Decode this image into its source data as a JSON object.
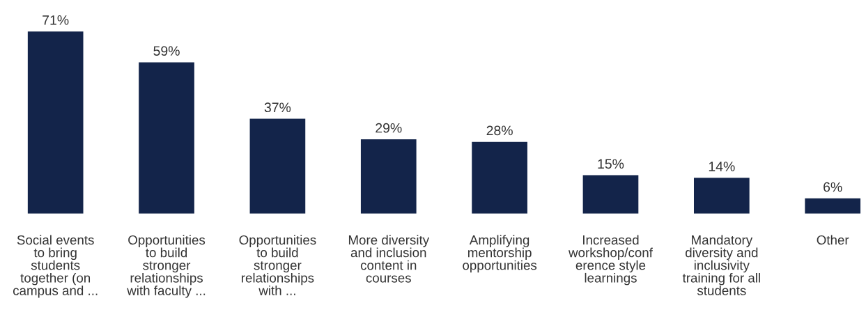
{
  "chart_data": {
    "type": "bar",
    "categories": [
      "Social events\nto bring\nstudents\ntogether (on\ncampus and ...",
      "Opportunities\nto build\nstronger\nrelationships\nwith faculty ...",
      "Opportunities\nto build\nstronger\nrelationships\nwith ...",
      "More diversity\nand inclusion\ncontent in\ncourses",
      "Amplifying\nmentorship\nopportunities",
      "Increased\nworkshop/conf\nerence style\nlearnings",
      "Mandatory\ndiversity and\ninclusivity\ntraining for all\nstudents",
      "Other"
    ],
    "values": [
      71,
      59,
      37,
      29,
      28,
      15,
      14,
      6
    ],
    "value_labels": [
      "71%",
      "59%",
      "37%",
      "29%",
      "28%",
      "15%",
      "14%",
      "6%"
    ],
    "color": "#13244a",
    "grid": false,
    "legend": false
  }
}
